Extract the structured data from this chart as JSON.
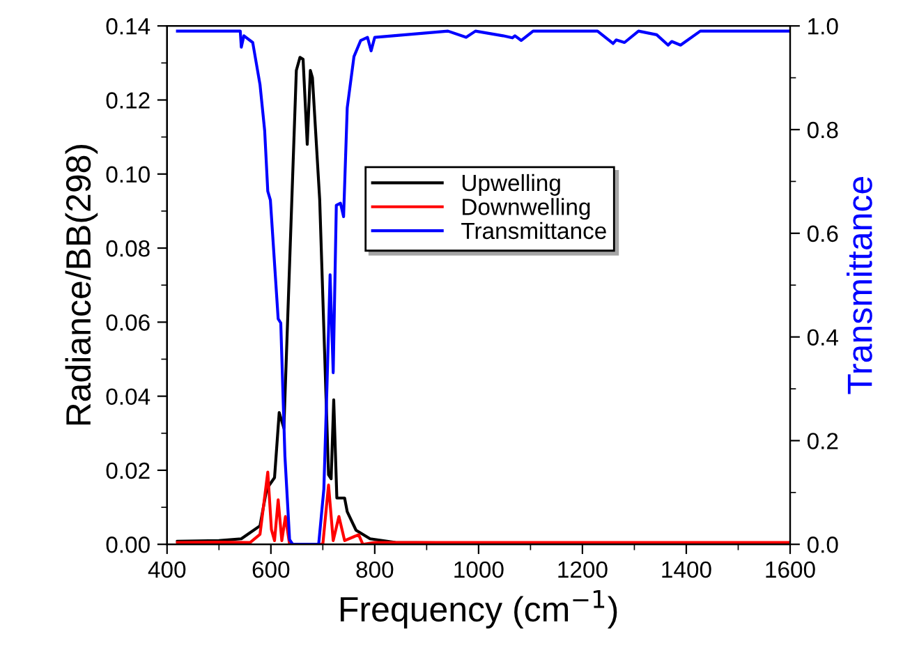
{
  "chart_data": {
    "type": "line",
    "xlabel": "Frequency (cm$^{−1}$)",
    "ylabel": "Radiance/BB(298)",
    "y2label": "Transmittance",
    "xlim": [
      400,
      1600
    ],
    "xticks": [
      400,
      600,
      800,
      1000,
      1200,
      1400,
      1600
    ],
    "ylim": [
      0,
      0.14
    ],
    "yticks": [
      {
        "value": 0,
        "label": "0.00"
      },
      {
        "value": 0.02,
        "label": "0.02"
      },
      {
        "value": 0.04,
        "label": "0.04"
      },
      {
        "value": 0.06,
        "label": "0.06"
      },
      {
        "value": 0.08,
        "label": "0.08"
      },
      {
        "value": 0.1,
        "label": "0.10"
      },
      {
        "value": 0.12,
        "label": "0.12"
      },
      {
        "value": 0.14,
        "label": "0.14"
      }
    ],
    "y2lim": [
      0,
      1.0
    ],
    "y2ticks": [
      {
        "value": 0,
        "label": "0.0"
      },
      {
        "value": 0.2,
        "label": "0.2"
      },
      {
        "value": 0.4,
        "label": "0.4"
      },
      {
        "value": 0.6,
        "label": "0.6"
      },
      {
        "value": 0.8,
        "label": "0.8"
      },
      {
        "value": 1.0,
        "label": "1.0"
      }
    ],
    "legend": "center",
    "grid": false,
    "series": [
      {
        "name": "Upwelling",
        "color": "#000000",
        "x": [
          420,
          500,
          543,
          579,
          592,
          607,
          616,
          625,
          649,
          656,
          662,
          670,
          676,
          680,
          694,
          711,
          716,
          721,
          727,
          742,
          747,
          764,
          791,
          840,
          1000,
          1200,
          1400,
          1600
        ],
        "values": [
          0.0008,
          0.001,
          0.0015,
          0.005,
          0.015,
          0.018,
          0.0356,
          0.0314,
          0.128,
          0.1315,
          0.131,
          0.108,
          0.128,
          0.126,
          0.093,
          0.0188,
          0.0177,
          0.039,
          0.0125,
          0.0125,
          0.0088,
          0.0038,
          0.0015,
          0.0005,
          0.0003,
          0.0003,
          0.0003,
          0.0003
        ]
      },
      {
        "name": "Downwelling",
        "color": "#ff0000",
        "x": [
          420,
          500,
          560,
          579,
          594,
          601,
          607,
          614,
          621,
          628,
          636,
          645,
          700,
          711,
          720,
          731,
          742,
          769,
          777,
          800,
          1000,
          1200,
          1400,
          1600
        ],
        "values": [
          0.0005,
          0.0006,
          0.0005,
          0.0027,
          0.0195,
          0.004,
          0.001,
          0.012,
          0.001,
          0.0075,
          0.0,
          0.0,
          0.0,
          0.016,
          0.001,
          0.0075,
          0.001,
          0.0026,
          0.0,
          0.0005,
          0.0005,
          0.0005,
          0.0005,
          0.0005
        ]
      },
      {
        "name": "Transmittance",
        "color": "#0000ff",
        "axis": "y2",
        "x": [
          420,
          500,
          541,
          543,
          548,
          565,
          579,
          588,
          594,
          599,
          614,
          619,
          627,
          636,
          642,
          692,
          702,
          708,
          714,
          720,
          726,
          734,
          740,
          747,
          760,
          773,
          786,
          793,
          800,
          941,
          976,
          994,
          1047,
          1065,
          1070,
          1082,
          1105,
          1229,
          1259,
          1265,
          1281,
          1308,
          1343,
          1365,
          1372,
          1389,
          1427,
          1600
        ],
        "values": [
          0.99,
          0.99,
          0.99,
          0.959,
          0.981,
          0.968,
          0.887,
          0.798,
          0.681,
          0.664,
          0.435,
          0.427,
          0.17,
          0.009,
          0.0,
          0.0,
          0.107,
          0.305,
          0.52,
          0.331,
          0.654,
          0.658,
          0.632,
          0.842,
          0.941,
          0.972,
          0.978,
          0.952,
          0.978,
          0.99,
          0.978,
          0.99,
          0.981,
          0.977,
          0.981,
          0.972,
          0.99,
          0.99,
          0.966,
          0.973,
          0.968,
          0.99,
          0.983,
          0.963,
          0.97,
          0.963,
          0.99,
          0.99
        ]
      }
    ]
  }
}
